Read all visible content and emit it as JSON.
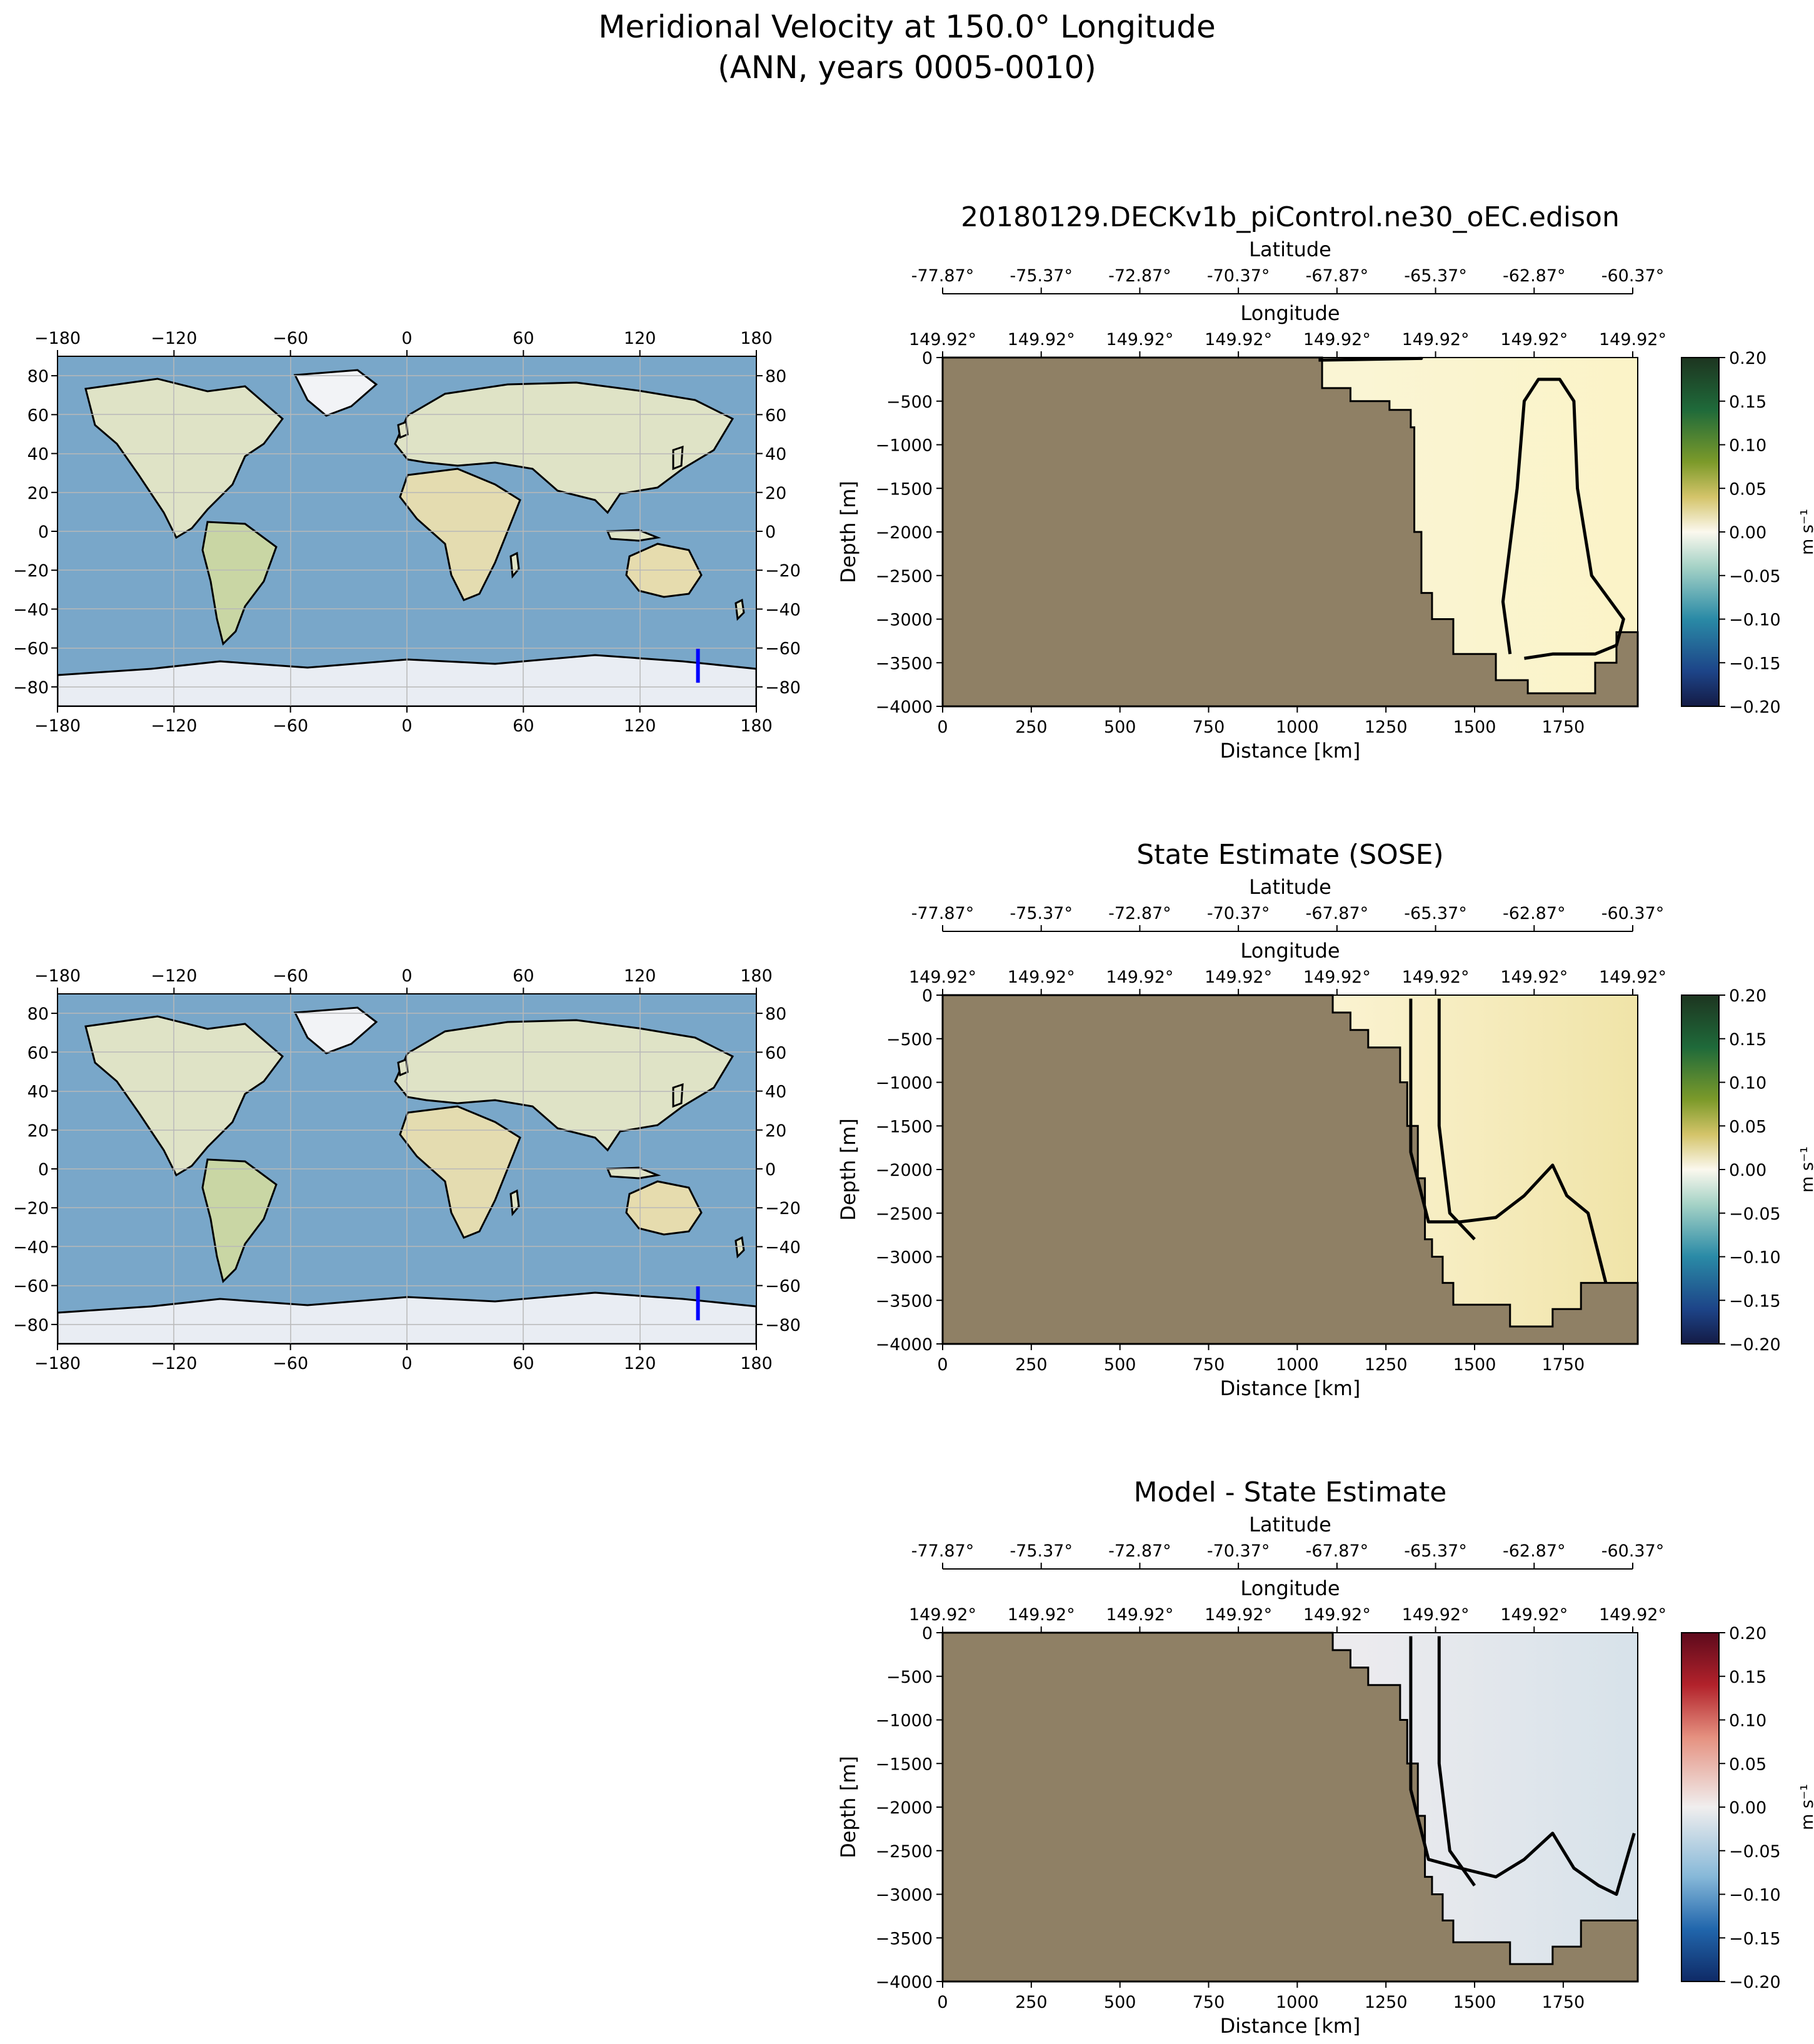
{
  "figure": {
    "title_line1": "Meridional Velocity at 150.0° Longitude",
    "title_line2": "(ANN, years 0005-0010)"
  },
  "colors": {
    "land": "#8f8065",
    "ocean": "#79a7c9",
    "transect": "#0000ff",
    "contour": "#000000"
  },
  "maps": {
    "lon_ticks": [
      "−180",
      "−120",
      "−60",
      "0",
      "60",
      "120",
      "180"
    ],
    "lat_ticks": [
      "80",
      "60",
      "40",
      "20",
      "0",
      "−20",
      "−40",
      "−60",
      "−80"
    ],
    "transect": {
      "lon": 149.92,
      "lat_start": -77.87,
      "lat_end": -60.37
    }
  },
  "chart_data": [
    {
      "type": "heatmap",
      "title": "20180129.DECKv1b_piControl.ne30_oEC.edison",
      "xlabel": "Distance [km]",
      "ylabel": "Depth [m]",
      "xlim": [
        0,
        1960
      ],
      "ylim": [
        -4000,
        0
      ],
      "x_ticks": [
        "0",
        "250",
        "500",
        "750",
        "1000",
        "1250",
        "1500",
        "1750"
      ],
      "y_ticks": [
        "0",
        "−500",
        "−1000",
        "−1500",
        "−2000",
        "−2500",
        "−3000",
        "−3500",
        "−4000"
      ],
      "top_axis_1_label": "Latitude",
      "top_axis_1_ticks": [
        "-77.87°",
        "-75.37°",
        "-72.87°",
        "-70.37°",
        "-67.87°",
        "-65.37°",
        "-62.87°",
        "-60.37°"
      ],
      "top_axis_2_label": "Longitude",
      "top_axis_2_ticks": [
        "149.92°",
        "149.92°",
        "149.92°",
        "149.92°",
        "149.92°",
        "149.92°",
        "149.92°",
        "149.92°"
      ],
      "colorbar": {
        "label": "m s⁻¹",
        "range": [
          -0.2,
          0.2
        ],
        "ticks": [
          "0.20",
          "0.15",
          "0.10",
          "0.05",
          "0.00",
          "−0.05",
          "−0.10",
          "−0.15",
          "−0.20"
        ],
        "colormap": "gist_earth-like"
      },
      "bathymetry": [
        [
          0,
          0
        ],
        [
          1070,
          0
        ],
        [
          1070,
          -350
        ],
        [
          1150,
          -350
        ],
        [
          1150,
          -500
        ],
        [
          1260,
          -500
        ],
        [
          1260,
          -600
        ],
        [
          1320,
          -600
        ],
        [
          1320,
          -800
        ],
        [
          1330,
          -800
        ],
        [
          1330,
          -2000
        ],
        [
          1350,
          -2000
        ],
        [
          1350,
          -2700
        ],
        [
          1380,
          -2700
        ],
        [
          1380,
          -3000
        ],
        [
          1440,
          -3000
        ],
        [
          1440,
          -3400
        ],
        [
          1560,
          -3400
        ],
        [
          1560,
          -3700
        ],
        [
          1650,
          -3700
        ],
        [
          1650,
          -3850
        ],
        [
          1840,
          -3850
        ],
        [
          1840,
          -3500
        ],
        [
          1900,
          -3500
        ],
        [
          1900,
          -3150
        ],
        [
          1960,
          -3150
        ]
      ]
    },
    {
      "type": "heatmap",
      "title": "State Estimate (SOSE)",
      "xlabel": "Distance [km]",
      "ylabel": "Depth [m]",
      "xlim": [
        0,
        1960
      ],
      "ylim": [
        -4000,
        0
      ],
      "x_ticks": [
        "0",
        "250",
        "500",
        "750",
        "1000",
        "1250",
        "1500",
        "1750"
      ],
      "y_ticks": [
        "0",
        "−500",
        "−1000",
        "−1500",
        "−2000",
        "−2500",
        "−3000",
        "−3500",
        "−4000"
      ],
      "top_axis_1_label": "Latitude",
      "top_axis_1_ticks": [
        "-77.87°",
        "-75.37°",
        "-72.87°",
        "-70.37°",
        "-67.87°",
        "-65.37°",
        "-62.87°",
        "-60.37°"
      ],
      "top_axis_2_label": "Longitude",
      "top_axis_2_ticks": [
        "149.92°",
        "149.92°",
        "149.92°",
        "149.92°",
        "149.92°",
        "149.92°",
        "149.92°",
        "149.92°"
      ],
      "colorbar": {
        "label": "m s⁻¹",
        "range": [
          -0.2,
          0.2
        ],
        "ticks": [
          "0.20",
          "0.15",
          "0.10",
          "0.05",
          "0.00",
          "−0.05",
          "−0.10",
          "−0.15",
          "−0.20"
        ],
        "colormap": "gist_earth-like"
      },
      "bathymetry": [
        [
          0,
          0
        ],
        [
          1100,
          0
        ],
        [
          1100,
          -200
        ],
        [
          1150,
          -200
        ],
        [
          1150,
          -400
        ],
        [
          1200,
          -400
        ],
        [
          1200,
          -600
        ],
        [
          1290,
          -600
        ],
        [
          1290,
          -1000
        ],
        [
          1310,
          -1000
        ],
        [
          1310,
          -1500
        ],
        [
          1340,
          -1500
        ],
        [
          1340,
          -2100
        ],
        [
          1360,
          -2100
        ],
        [
          1360,
          -2800
        ],
        [
          1380,
          -2800
        ],
        [
          1380,
          -3000
        ],
        [
          1410,
          -3000
        ],
        [
          1410,
          -3300
        ],
        [
          1440,
          -3300
        ],
        [
          1440,
          -3550
        ],
        [
          1600,
          -3550
        ],
        [
          1600,
          -3800
        ],
        [
          1720,
          -3800
        ],
        [
          1720,
          -3600
        ],
        [
          1800,
          -3600
        ],
        [
          1800,
          -3300
        ],
        [
          1960,
          -3300
        ]
      ]
    },
    {
      "type": "heatmap",
      "title": "Model - State Estimate",
      "xlabel": "Distance [km]",
      "ylabel": "Depth [m]",
      "xlim": [
        0,
        1960
      ],
      "ylim": [
        -4000,
        0
      ],
      "x_ticks": [
        "0",
        "250",
        "500",
        "750",
        "1000",
        "1250",
        "1500",
        "1750"
      ],
      "y_ticks": [
        "0",
        "−500",
        "−1000",
        "−1500",
        "−2000",
        "−2500",
        "−3000",
        "−3500",
        "−4000"
      ],
      "top_axis_1_label": "Latitude",
      "top_axis_1_ticks": [
        "-77.87°",
        "-75.37°",
        "-72.87°",
        "-70.37°",
        "-67.87°",
        "-65.37°",
        "-62.87°",
        "-60.37°"
      ],
      "top_axis_2_label": "Longitude",
      "top_axis_2_ticks": [
        "149.92°",
        "149.92°",
        "149.92°",
        "149.92°",
        "149.92°",
        "149.92°",
        "149.92°",
        "149.92°"
      ],
      "colorbar": {
        "label": "m s⁻¹",
        "range": [
          -0.2,
          0.2
        ],
        "ticks": [
          "0.20",
          "0.15",
          "0.10",
          "0.05",
          "0.00",
          "−0.05",
          "−0.10",
          "−0.15",
          "−0.20"
        ],
        "colormap": "RdBu_r-like"
      },
      "bathymetry": [
        [
          0,
          0
        ],
        [
          1100,
          0
        ],
        [
          1100,
          -200
        ],
        [
          1150,
          -200
        ],
        [
          1150,
          -400
        ],
        [
          1200,
          -400
        ],
        [
          1200,
          -600
        ],
        [
          1290,
          -600
        ],
        [
          1290,
          -1000
        ],
        [
          1310,
          -1000
        ],
        [
          1310,
          -1500
        ],
        [
          1340,
          -1500
        ],
        [
          1340,
          -2100
        ],
        [
          1360,
          -2100
        ],
        [
          1360,
          -2800
        ],
        [
          1380,
          -2800
        ],
        [
          1380,
          -3000
        ],
        [
          1410,
          -3000
        ],
        [
          1410,
          -3300
        ],
        [
          1440,
          -3300
        ],
        [
          1440,
          -3550
        ],
        [
          1600,
          -3550
        ],
        [
          1600,
          -3800
        ],
        [
          1720,
          -3800
        ],
        [
          1720,
          -3600
        ],
        [
          1800,
          -3600
        ],
        [
          1800,
          -3300
        ],
        [
          1960,
          -3300
        ]
      ]
    }
  ]
}
